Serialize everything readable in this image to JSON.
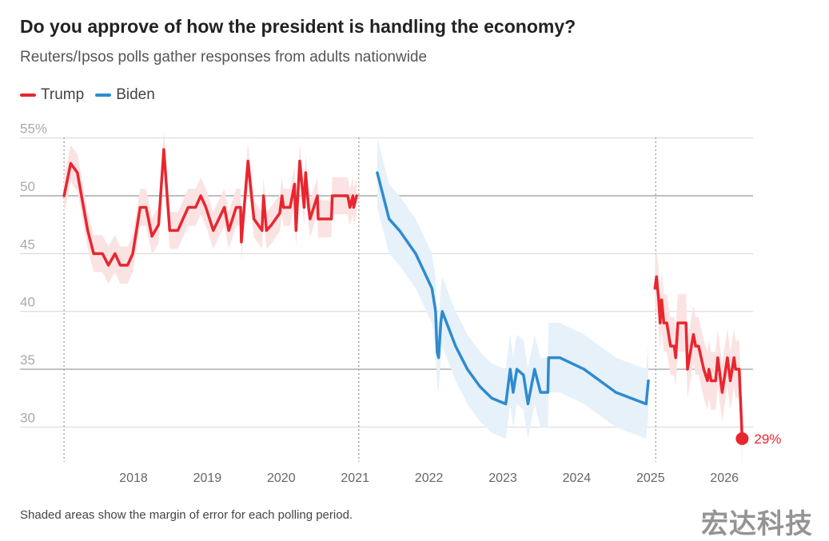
{
  "title": "Do you approve of how the president is handling the economy?",
  "subtitle": "Reuters/Ipsos polls gather responses from adults nationwide",
  "note": "Shaded areas show the margin of error for each polling period.",
  "watermark": "宏达科技",
  "chart_data": {
    "type": "line",
    "ylim": [
      27,
      56
    ],
    "xlim": [
      2016.8,
      2026.6
    ],
    "y_ticks": [
      {
        "value": 55,
        "label": "55%"
      },
      {
        "value": 50,
        "label": "50"
      },
      {
        "value": 45,
        "label": "45"
      },
      {
        "value": 40,
        "label": "40"
      },
      {
        "value": 35,
        "label": "35"
      },
      {
        "value": 30,
        "label": "30"
      }
    ],
    "x_ticks": [
      {
        "value": 2018,
        "label": "2018"
      },
      {
        "value": 2019,
        "label": "2019"
      },
      {
        "value": 2020,
        "label": "2020"
      },
      {
        "value": 2021,
        "label": "2021"
      },
      {
        "value": 2022,
        "label": "2022"
      },
      {
        "value": 2023,
        "label": "2023"
      },
      {
        "value": 2024,
        "label": "2024"
      },
      {
        "value": 2025,
        "label": "2025"
      },
      {
        "value": 2026,
        "label": "2026"
      }
    ],
    "grid": true,
    "term_markers": [
      2017.06,
      2021.05,
      2025.07
    ],
    "legend": {
      "placement": "top-left",
      "items": [
        {
          "name": "Trump",
          "color": "#e8262f"
        },
        {
          "name": "Biden",
          "color": "#2e8bcf"
        }
      ]
    },
    "series": [
      {
        "name": "Trump",
        "color": "#e8262f",
        "band_color": "#fbe3e3",
        "margin": 1.6,
        "x": [
          2017.06,
          2017.15,
          2017.24,
          2017.38,
          2017.46,
          2017.58,
          2017.66,
          2017.75,
          2017.82,
          2017.92,
          2017.99,
          2018.09,
          2018.17,
          2018.25,
          2018.34,
          2018.41,
          2018.49,
          2018.6,
          2018.74,
          2018.84,
          2018.91,
          2018.98,
          2019.08,
          2019.23,
          2019.29,
          2019.39,
          2019.45,
          2019.46,
          2019.55,
          2019.63,
          2019.74,
          2019.76,
          2019.8,
          2019.87,
          2019.98,
          2020.01,
          2020.03,
          2020.12,
          2020.18,
          2020.2,
          2020.25,
          2020.31,
          2020.33,
          2020.37,
          2020.39,
          2020.44,
          2020.49,
          2020.5,
          2020.68,
          2020.69,
          2020.9,
          2020.93,
          2020.97,
          2020.98,
          2021.02
        ],
        "y": [
          50,
          52.8,
          52,
          47,
          45,
          45,
          44,
          45,
          44,
          44,
          45,
          49,
          49,
          46.5,
          47.5,
          54,
          47,
          47,
          49,
          49,
          50,
          49,
          47,
          49,
          47,
          49,
          49,
          46,
          53,
          48,
          47,
          50,
          47,
          47.5,
          48.5,
          50,
          49,
          49,
          51,
          47,
          53,
          49,
          52,
          49,
          48,
          49,
          50,
          48,
          48,
          50,
          50,
          49,
          50,
          49,
          50
        ]
      },
      {
        "name": "Biden",
        "color": "#2e8bcf",
        "band_color": "#e6f1fa",
        "margin": 3,
        "x": [
          2021.3,
          2021.46,
          2021.6,
          2021.82,
          2022.04,
          2022.09,
          2022.11,
          2022.13,
          2022.16,
          2022.18,
          2022.36,
          2022.52,
          2022.69,
          2022.85,
          2023.04,
          2023.1,
          2023.14,
          2023.19,
          2023.28,
          2023.34,
          2023.43,
          2023.51,
          2023.61,
          2023.62,
          2023.77,
          2024.1,
          2024.53,
          2024.94,
          2024.97
        ],
        "y": [
          52,
          48,
          47,
          45,
          42,
          40,
          36.5,
          36,
          39,
          40,
          37,
          35,
          33.5,
          32.5,
          32,
          35,
          33,
          35,
          34.5,
          32,
          35,
          33,
          33,
          36,
          36,
          35,
          33,
          32,
          34
        ]
      },
      {
        "name": "Trump",
        "color": "#e8262f",
        "band_color": "#fbe3e3",
        "margin": 2.5,
        "x": [
          2025.06,
          2025.08,
          2025.11,
          2025.13,
          2025.15,
          2025.18,
          2025.22,
          2025.27,
          2025.32,
          2025.34,
          2025.37,
          2025.48,
          2025.5,
          2025.58,
          2025.61,
          2025.65,
          2025.72,
          2025.77,
          2025.79,
          2025.82,
          2025.88,
          2025.91,
          2025.97,
          2026.04,
          2026.08,
          2026.13,
          2026.15,
          2026.2,
          2026.24
        ],
        "y": [
          42,
          43,
          41,
          39,
          41,
          39,
          39,
          37,
          37,
          36,
          39,
          39,
          35,
          38,
          37,
          37,
          35,
          34,
          35,
          34,
          34,
          36,
          33,
          36,
          34,
          36,
          35,
          35,
          29
        ]
      }
    ],
    "end_label": {
      "value": 29,
      "label": "29%"
    }
  }
}
